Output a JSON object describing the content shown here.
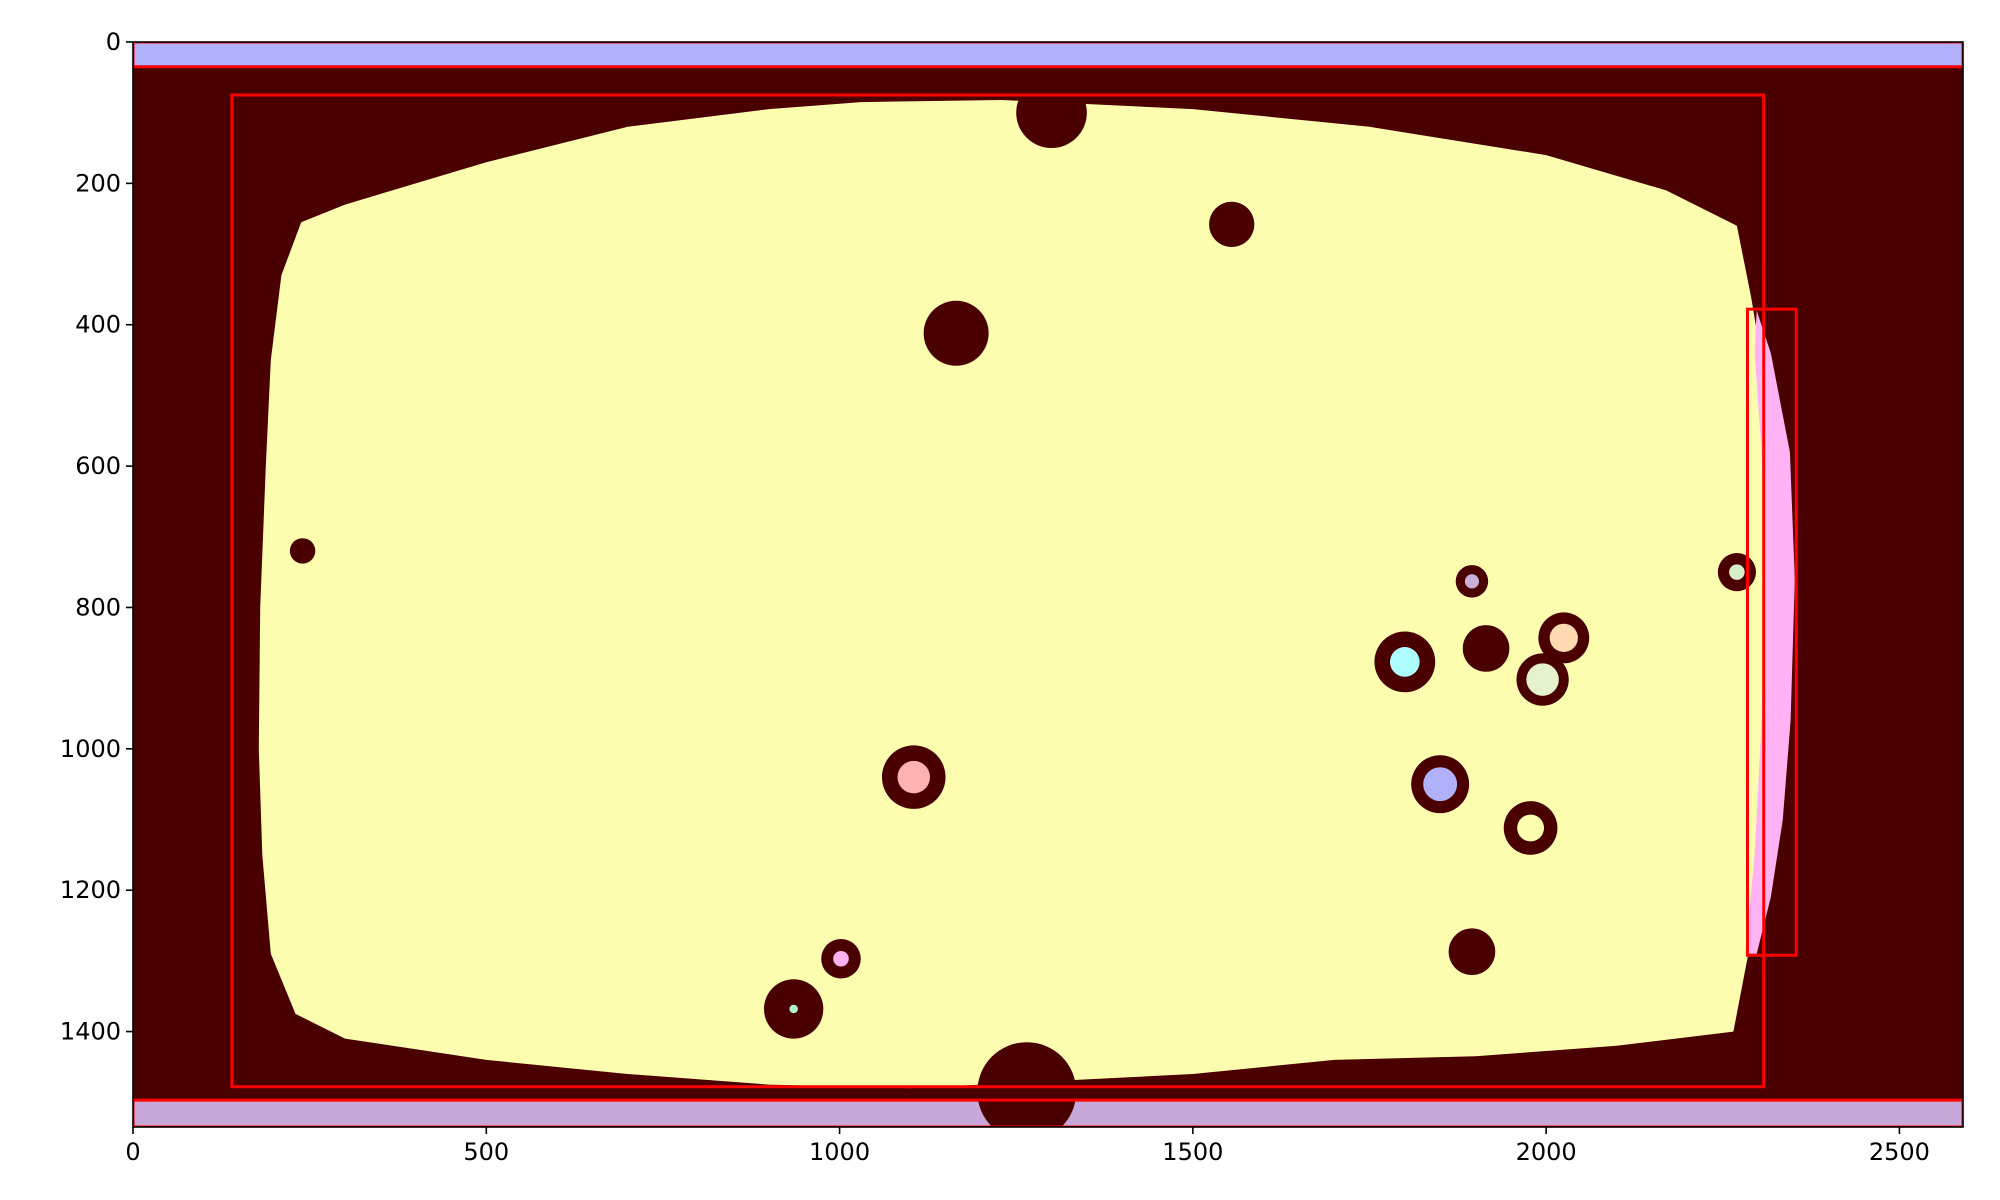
{
  "chart_data": {
    "type": "heatmap",
    "title": "",
    "xlabel": "",
    "ylabel": "",
    "xlim": [
      0,
      2590
    ],
    "ylim": [
      1535,
      0
    ],
    "y_inverted": true,
    "grid": false,
    "legend": "none",
    "x_ticks": [
      {
        "value": 0,
        "label": "0"
      },
      {
        "value": 500,
        "label": "500"
      },
      {
        "value": 1000,
        "label": "1000"
      },
      {
        "value": 1500,
        "label": "1500"
      },
      {
        "value": 2000,
        "label": "2000"
      },
      {
        "value": 2500,
        "label": "2500"
      }
    ],
    "y_ticks": [
      {
        "value": 0,
        "label": "0"
      },
      {
        "value": 200,
        "label": "200"
      },
      {
        "value": 400,
        "label": "400"
      },
      {
        "value": 600,
        "label": "600"
      },
      {
        "value": 800,
        "label": "800"
      },
      {
        "value": 1000,
        "label": "1000"
      },
      {
        "value": 1200,
        "label": "1200"
      },
      {
        "value": 1400,
        "label": "1400"
      }
    ],
    "colors": {
      "background": "#4b0000",
      "main_region": "#fdfdb0",
      "top_band": "#b0b0fb",
      "bottom_band": "#c8a8d8",
      "right_sliver": "#ffb3f5",
      "box_outline": "#ff0000"
    },
    "regions": [
      {
        "label": "top_band",
        "color": "#b0b0fb",
        "x": [
          0,
          2590
        ],
        "y": [
          0,
          35
        ]
      },
      {
        "label": "bottom_band",
        "color": "#c8a8d8",
        "x": [
          0,
          2590
        ],
        "y": [
          1497,
          1535
        ]
      }
    ],
    "main_outline": [
      [
        300,
        230
      ],
      [
        500,
        170
      ],
      [
        700,
        120
      ],
      [
        900,
        95
      ],
      [
        1030,
        85
      ],
      [
        1230,
        82
      ],
      [
        1500,
        95
      ],
      [
        1750,
        120
      ],
      [
        2000,
        160
      ],
      [
        2170,
        210
      ],
      [
        2270,
        260
      ],
      [
        2290,
        360
      ],
      [
        2310,
        480
      ],
      [
        2320,
        700
      ],
      [
        2315,
        900
      ],
      [
        2305,
        1100
      ],
      [
        2290,
        1270
      ],
      [
        2265,
        1400
      ],
      [
        2100,
        1420
      ],
      [
        1900,
        1435
      ],
      [
        1700,
        1440
      ],
      [
        1500,
        1460
      ],
      [
        1300,
        1470
      ],
      [
        1100,
        1480
      ],
      [
        900,
        1475
      ],
      [
        700,
        1460
      ],
      [
        500,
        1440
      ],
      [
        300,
        1410
      ],
      [
        230,
        1375
      ],
      [
        195,
        1290
      ],
      [
        183,
        1150
      ],
      [
        178,
        1000
      ],
      [
        180,
        800
      ],
      [
        188,
        600
      ],
      [
        195,
        450
      ],
      [
        210,
        330
      ],
      [
        238,
        255
      ]
    ],
    "right_sliver_outline": [
      [
        2298,
        380
      ],
      [
        2318,
        440
      ],
      [
        2345,
        580
      ],
      [
        2352,
        760
      ],
      [
        2346,
        960
      ],
      [
        2335,
        1100
      ],
      [
        2318,
        1210
      ],
      [
        2298,
        1290
      ],
      [
        2282,
        1290
      ],
      [
        2295,
        1150
      ],
      [
        2305,
        960
      ],
      [
        2310,
        760
      ],
      [
        2305,
        580
      ],
      [
        2295,
        440
      ]
    ],
    "blobs": [
      {
        "x": 1165,
        "y": 412,
        "r": 46,
        "fill": "#4b0000"
      },
      {
        "x": 1555,
        "y": 258,
        "r": 32,
        "fill": "#4b0000"
      },
      {
        "x": 1895,
        "y": 1287,
        "r": 33,
        "fill": "#4b0000"
      },
      {
        "x": 1105,
        "y": 1040,
        "r": 45,
        "fill": "#4b0000",
        "inner_fill": "#ffb3b3",
        "inner_r": 23
      },
      {
        "x": 1800,
        "y": 877,
        "r": 43,
        "fill": "#4b0000",
        "inner_fill": "#adfdfd",
        "inner_r": 21
      },
      {
        "x": 1850,
        "y": 1050,
        "r": 41,
        "fill": "#4b0000",
        "inner_fill": "#b0b0fb",
        "inner_r": 24
      },
      {
        "x": 2025,
        "y": 843,
        "r": 36,
        "fill": "#4b0000",
        "inner_fill": "#ffd9b0",
        "inner_r": 20
      },
      {
        "x": 1995,
        "y": 902,
        "r": 37,
        "fill": "#4b0000",
        "inner_fill": "#e6f2cc",
        "inner_r": 23
      },
      {
        "x": 1895,
        "y": 763,
        "r": 23,
        "fill": "#4b0000",
        "inner_fill": "#c8b0d8",
        "inner_r": 10
      },
      {
        "x": 1978,
        "y": 1112,
        "r": 38,
        "fill": "#4b0000",
        "inner_fill": "#fdfdb0",
        "inner_r": 19
      },
      {
        "x": 2270,
        "y": 750,
        "r": 27,
        "fill": "#4b0000",
        "inner_fill": "#d8f0c8",
        "inner_r": 11
      },
      {
        "x": 1002,
        "y": 1297,
        "r": 28,
        "fill": "#4b0000",
        "inner_fill": "#ffb3f5",
        "inner_r": 11
      },
      {
        "x": 935,
        "y": 1368,
        "r": 42,
        "fill": "#4b0000",
        "inner_fill": "#b3f5d0",
        "inner_r": 6
      },
      {
        "x": 1915,
        "y": 858,
        "r": 33,
        "fill": "#4b0000"
      },
      {
        "x": 240,
        "y": 720,
        "r": 18,
        "fill": "#4b0000"
      },
      {
        "x": 1265,
        "y": 1485,
        "r": 70,
        "fill": "#4b0000"
      },
      {
        "x": 1300,
        "y": 100,
        "r": 50,
        "fill": "#4b0000"
      }
    ],
    "boxes": [
      {
        "label": "box_1",
        "x": [
          0,
          2590
        ],
        "y": [
          0,
          35
        ],
        "color": "#ff0000"
      },
      {
        "label": "box_2",
        "x": [
          140,
          2308
        ],
        "y": [
          75,
          1478
        ],
        "color": "#ff0000"
      },
      {
        "label": "box_3",
        "x": [
          2285,
          2354
        ],
        "y": [
          378,
          1292
        ],
        "color": "#ff0000"
      },
      {
        "label": "box_4",
        "x": [
          0,
          2590
        ],
        "y": [
          1497,
          1535
        ],
        "color": "#ff0000"
      }
    ]
  }
}
